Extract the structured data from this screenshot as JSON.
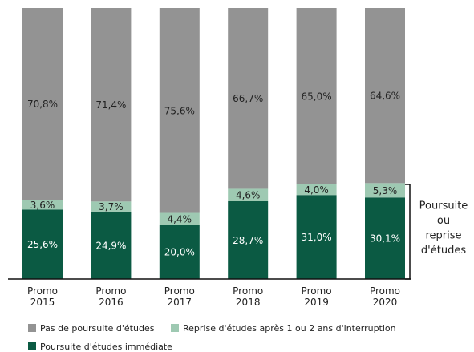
{
  "chart_data": {
    "type": "stacked-bar",
    "categories": [
      "Promo 2015",
      "Promo 2016",
      "Promo 2017",
      "Promo 2018",
      "Promo 2019",
      "Promo 2020"
    ],
    "series": [
      {
        "name": "Poursuite d'études immédiate",
        "color": "#0b5a43",
        "label_color": "#ffffff",
        "values": [
          25.6,
          24.9,
          20.0,
          28.7,
          31.0,
          30.1
        ],
        "value_labels": [
          "25,6%",
          "24,9%",
          "20,0%",
          "28,7%",
          "31,0%",
          "30,1%"
        ]
      },
      {
        "name": "Reprise d'études  après 1 ou 2 ans d'interruption",
        "color": "#9ec9b2",
        "label_color": "#222222",
        "values": [
          3.6,
          3.7,
          4.4,
          4.6,
          4.0,
          5.3
        ],
        "value_labels": [
          "3,6%",
          "3,7%",
          "4,4%",
          "4,6%",
          "4,0%",
          "5,3%"
        ]
      },
      {
        "name": "Pas de poursuite d'études",
        "color": "#939393",
        "label_color": "#222222",
        "values": [
          70.8,
          71.4,
          75.6,
          66.7,
          65.0,
          64.6
        ],
        "value_labels": [
          "70,8%",
          "71,4%",
          "75,6%",
          "66,7%",
          "65,0%",
          "64,6%"
        ]
      }
    ],
    "ylim": [
      0,
      100
    ],
    "annotation": [
      "Poursuite",
      "ou",
      "reprise",
      "d'études"
    ]
  }
}
